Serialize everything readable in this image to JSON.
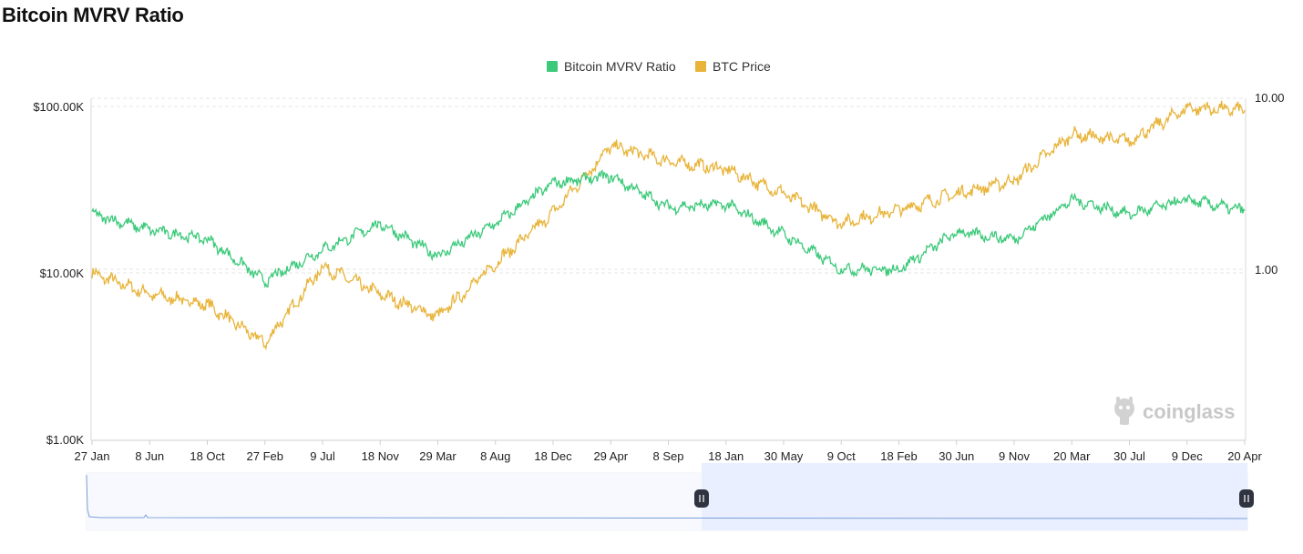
{
  "page": {
    "title": "Bitcoin MVRV Ratio"
  },
  "watermark": {
    "text": "coinglass"
  },
  "legend": {
    "items": [
      "Bitcoin MVRV Ratio",
      "BTC Price"
    ]
  },
  "colors": {
    "mvrv": "#3cc97a",
    "price": "#e8b43a",
    "grid": "#e6e6e6",
    "zoom_fill": "#e9effe",
    "zoom_line": "#7b9fd9",
    "handle": "#2f3440"
  },
  "chart_data": {
    "type": "line",
    "title": "Bitcoin MVRV Ratio",
    "x_tick_labels": [
      "27 Jan",
      "8 Jun",
      "18 Oct",
      "27 Feb",
      "9 Jul",
      "18 Nov",
      "29 Mar",
      "8 Aug",
      "18 Dec",
      "29 Apr",
      "8 Sep",
      "18 Jan",
      "30 May",
      "9 Oct",
      "18 Feb",
      "30 Jun",
      "9 Nov",
      "20 Mar",
      "30 Jul",
      "9 Dec",
      "20 Apr"
    ],
    "y_left": {
      "label": "BTC Price",
      "scale": "log",
      "ticks": [
        "$100.00K",
        "$10.00K",
        "$1.00K"
      ],
      "range": [
        1000,
        100000
      ]
    },
    "y_right": {
      "label": "Bitcoin MVRV Ratio",
      "scale": "log",
      "ticks": [
        "10.00",
        "1.00"
      ],
      "range": [
        0.1,
        10
      ]
    },
    "series": [
      {
        "name": "Bitcoin MVRV Ratio",
        "axis": "right",
        "x": [
          "27 Jan",
          "8 Jun",
          "18 Oct",
          "27 Feb",
          "9 Jul",
          "18 Nov",
          "29 Mar",
          "8 Aug",
          "18 Dec",
          "29 Apr",
          "8 Sep",
          "18 Jan",
          "30 May",
          "9 Oct",
          "18 Feb",
          "30 Jun",
          "9 Nov",
          "20 Mar",
          "30 Jul",
          "9 Dec",
          "20 Apr"
        ],
        "values": [
          2.1,
          1.7,
          1.5,
          0.85,
          1.3,
          1.85,
          1.2,
          1.85,
          3.2,
          3.5,
          2.3,
          2.4,
          1.6,
          1.0,
          1.0,
          1.65,
          1.5,
          2.55,
          2.1,
          2.55,
          2.2
        ]
      },
      {
        "name": "BTC Price",
        "axis": "left",
        "x": [
          "27 Jan",
          "8 Jun",
          "18 Oct",
          "27 Feb",
          "9 Jul",
          "18 Nov",
          "29 Mar",
          "8 Aug",
          "18 Dec",
          "29 Apr",
          "8 Sep",
          "18 Jan",
          "30 May",
          "9 Oct",
          "18 Feb",
          "30 Jun",
          "9 Nov",
          "20 Mar",
          "30 Jul",
          "9 Dec",
          "20 Apr"
        ],
        "values": [
          10000,
          7500,
          6500,
          3800,
          11000,
          7500,
          5500,
          11500,
          23000,
          58000,
          47000,
          42000,
          30000,
          20000,
          24000,
          30000,
          36000,
          68000,
          62000,
          98000,
          95000
        ]
      }
    ],
    "grid": true,
    "legend_position": "top-center"
  }
}
